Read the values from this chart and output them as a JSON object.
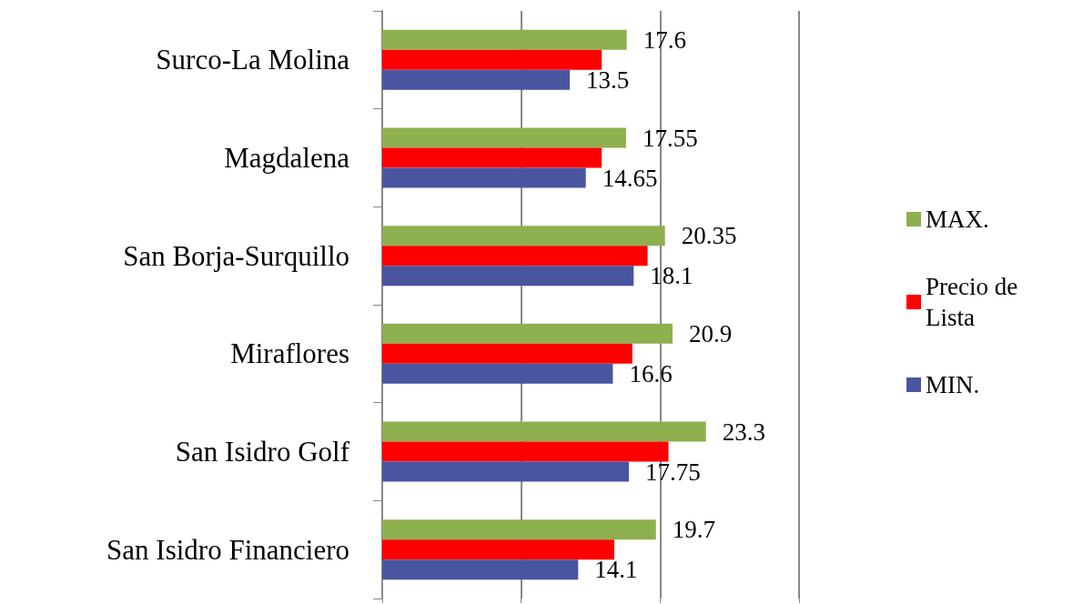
{
  "chart_data": {
    "type": "bar",
    "orientation": "horizontal",
    "categories": [
      "Surco-La Molina",
      "Magdalena",
      "San Borja-Surquillo",
      "Miraflores",
      "San Isidro Golf",
      "San Isidro Financiero"
    ],
    "series": [
      {
        "name": "MAX.",
        "color": "#8fb04f",
        "values": [
          17.6,
          17.55,
          20.35,
          20.9,
          23.3,
          19.7
        ],
        "value_labels": [
          "17.6",
          "17.55",
          "20.35",
          "20.9",
          "23.3",
          "19.7"
        ]
      },
      {
        "name": "Precio de Lista",
        "color": "#ff0000",
        "values": [
          15.8,
          15.8,
          19.1,
          18.0,
          20.6,
          16.7
        ]
      },
      {
        "name": "MIN.",
        "color": "#4a55a0",
        "values": [
          13.5,
          14.65,
          18.1,
          16.6,
          17.75,
          14.1
        ],
        "value_labels": [
          "13.5",
          "14.65",
          "18.1",
          "16.6",
          "17.75",
          "14.1"
        ]
      }
    ],
    "xlim": [
      0,
      30
    ],
    "xticks": [
      0,
      10,
      20,
      30
    ],
    "tick_labels": "y",
    "grid": "x",
    "legend": "right"
  }
}
